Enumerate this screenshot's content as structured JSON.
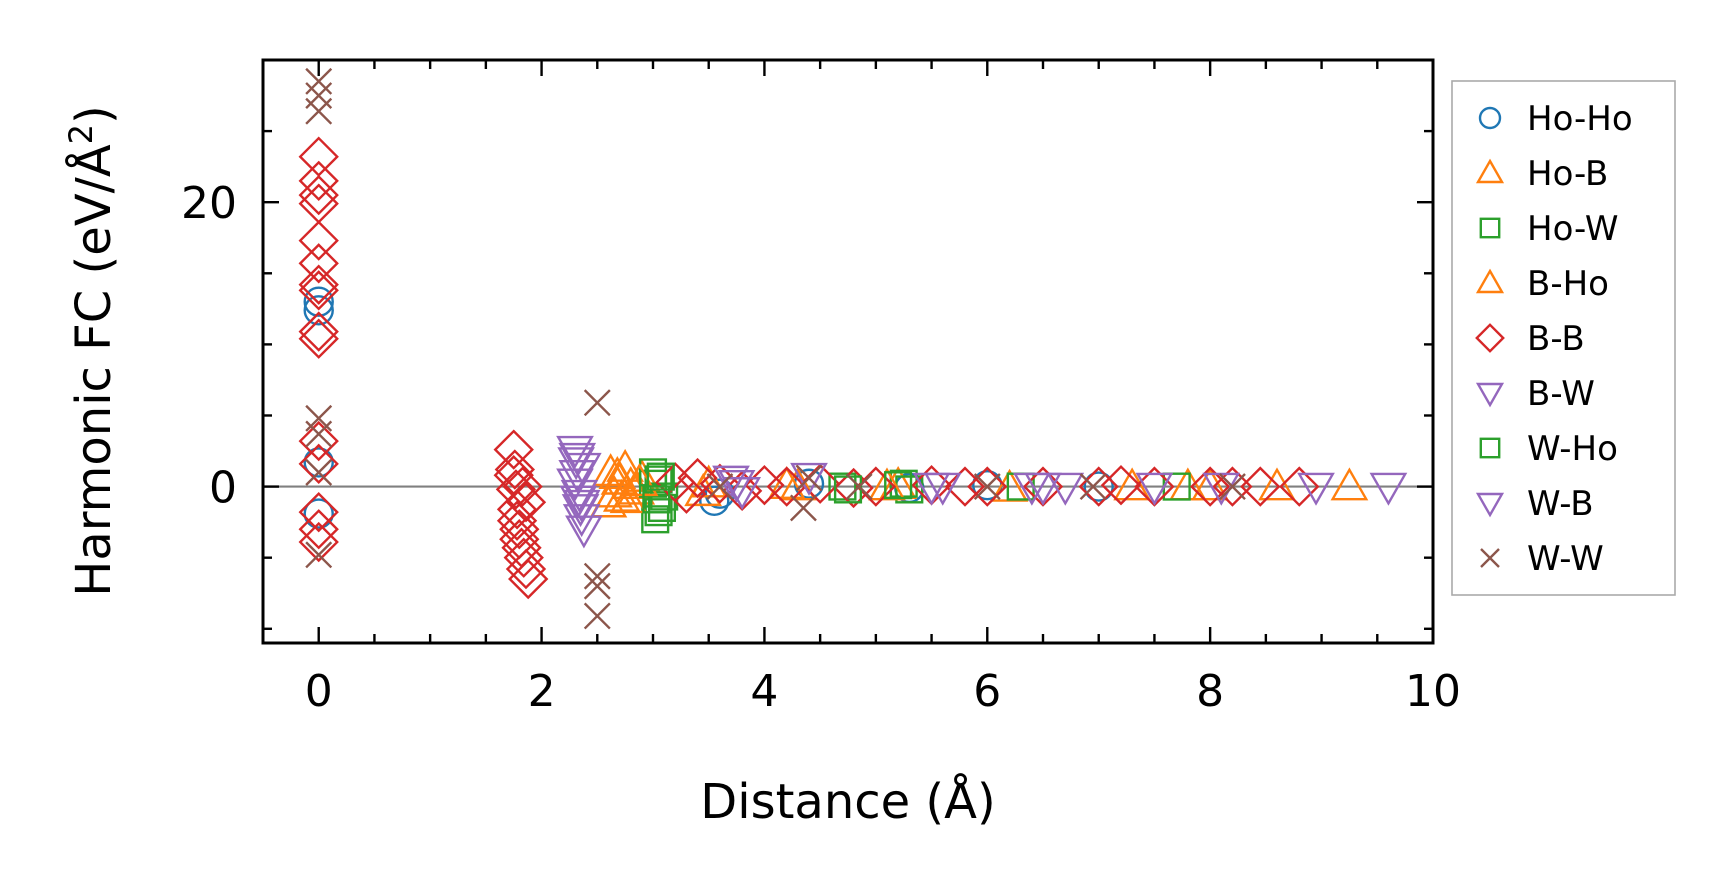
{
  "chart_data": {
    "type": "scatter",
    "xlabel": "Distance (Å)",
    "ylabel": "Harmonic FC (eV/Å²)",
    "ylabel_main": "Harmonic FC (eV/Å",
    "ylabel_sup": "2",
    "ylabel_close": ")",
    "xlim": [
      -0.5,
      10
    ],
    "ylim": [
      -11,
      30
    ],
    "xticks": [
      0,
      2,
      4,
      6,
      8,
      10
    ],
    "yticks": [
      0,
      20
    ],
    "zero_line": true,
    "grid": false,
    "legend_position": "outside-right",
    "series": [
      {
        "name": "Ho-Ho",
        "marker": "circle",
        "color": "#1f77b4",
        "x": [
          0,
          0,
          0,
          0,
          3.55,
          3.6,
          4.4,
          5.3,
          6.0,
          7.0
        ],
        "y": [
          13.0,
          12.4,
          1.7,
          -1.9,
          -1.0,
          -0.5,
          0.2,
          -0.1,
          0.1,
          0.0
        ]
      },
      {
        "name": "Ho-B",
        "marker": "triangle-up",
        "color": "#ff7f0e",
        "x": [
          2.6,
          2.62,
          2.65,
          2.7,
          2.72,
          2.75,
          2.8,
          2.85,
          2.9,
          3.5,
          4.3,
          5.2,
          6.2,
          7.3,
          7.8,
          8.0,
          8.6,
          9.25
        ],
        "y": [
          -1.2,
          1.0,
          -0.5,
          0.4,
          -0.8,
          1.3,
          0.1,
          -0.3,
          0.6,
          0.2,
          0.0,
          0.1,
          -0.1,
          0.0,
          0.0,
          0.0,
          0.0,
          0.0
        ]
      },
      {
        "name": "Ho-W",
        "marker": "square",
        "color": "#2ca02c",
        "x": [
          3.0,
          3.02,
          3.05,
          3.08,
          3.1,
          3.0,
          3.05,
          4.7,
          5.25,
          5.3,
          6.3,
          7.7
        ],
        "y": [
          1.0,
          -2.3,
          0.5,
          -1.5,
          -0.7,
          0.2,
          -1.8,
          0.0,
          0.2,
          -0.2,
          0.0,
          0.0
        ]
      },
      {
        "name": "B-Ho",
        "marker": "triangle-up",
        "color": "#ff7f0e",
        "x": [
          2.68,
          2.78,
          2.88,
          3.45,
          4.2,
          5.1
        ],
        "y": [
          0.8,
          -0.9,
          0.3,
          -0.4,
          0.1,
          0.0
        ]
      },
      {
        "name": "B-B",
        "marker": "diamond",
        "color": "#d62728",
        "x": [
          0,
          0,
          0,
          0,
          0,
          0,
          0,
          0,
          0,
          0,
          0,
          0,
          0,
          0,
          0,
          1.75,
          1.76,
          1.77,
          1.78,
          1.8,
          1.82,
          1.84,
          1.86,
          1.88,
          1.75,
          1.78,
          1.8,
          1.83,
          1.86,
          3.2,
          3.3,
          3.4,
          3.6,
          3.8,
          4.0,
          4.2,
          4.5,
          4.8,
          5.0,
          5.5,
          5.8,
          6.0,
          6.5,
          7.0,
          7.2,
          7.5,
          8.0,
          8.2,
          8.45,
          8.8
        ],
        "y": [
          23.2,
          21.5,
          20.5,
          19.9,
          17.3,
          15.7,
          14.2,
          13.8,
          10.9,
          10.4,
          3.2,
          1.6,
          -1.8,
          -3.0,
          -3.9,
          2.6,
          1.2,
          -0.2,
          -1.6,
          -3.0,
          -4.3,
          -5.0,
          -5.8,
          -6.5,
          0.8,
          -2.4,
          -3.7,
          0.0,
          -1.1,
          0.3,
          -0.5,
          0.6,
          0.2,
          -0.3,
          0.1,
          0.0,
          0.2,
          -0.1,
          0.0,
          0.1,
          0.0,
          0.0,
          0.0,
          0.0,
          0.1,
          0.0,
          0.0,
          0.0,
          0.0,
          0.0
        ]
      },
      {
        "name": "B-W",
        "marker": "triangle-down",
        "color": "#9467bd",
        "x": [
          2.3,
          2.31,
          2.32,
          2.34,
          2.35,
          2.36,
          2.38,
          2.3,
          2.33,
          2.37,
          3.7,
          3.8,
          4.4,
          5.6,
          6.5,
          6.7,
          8.1,
          8.95,
          9.6
        ],
        "y": [
          2.6,
          1.8,
          0.9,
          -0.5,
          -1.5,
          -2.2,
          -3.0,
          0.3,
          -0.9,
          1.4,
          0.5,
          -0.3,
          0.7,
          0.0,
          0.0,
          0.0,
          0.0,
          0.0,
          0.0
        ]
      },
      {
        "name": "W-Ho",
        "marker": "square",
        "color": "#2ca02c",
        "x": [
          3.03,
          3.07,
          4.75,
          5.2
        ],
        "y": [
          -0.9,
          0.7,
          -0.2,
          0.1
        ]
      },
      {
        "name": "W-B",
        "marker": "triangle-down",
        "color": "#9467bd",
        "x": [
          2.32,
          2.36,
          3.75,
          5.5,
          6.4,
          7.5
        ],
        "y": [
          2.1,
          -1.2,
          0.2,
          0.0,
          0.0,
          0.0
        ]
      },
      {
        "name": "W-W",
        "marker": "x",
        "color": "#8c564b",
        "x": [
          0,
          0,
          0,
          0,
          0,
          0,
          0,
          2.5,
          2.5,
          2.5,
          2.5,
          3.6,
          4.35,
          4.4,
          4.85,
          6.0,
          6.95,
          8.2
        ],
        "y": [
          28.5,
          27.5,
          26.4,
          4.8,
          3.7,
          1.0,
          -4.8,
          5.9,
          -6.3,
          -7.0,
          -9.1,
          0.0,
          -1.5,
          0.6,
          0.0,
          0.0,
          0.0,
          0.0
        ]
      }
    ]
  }
}
